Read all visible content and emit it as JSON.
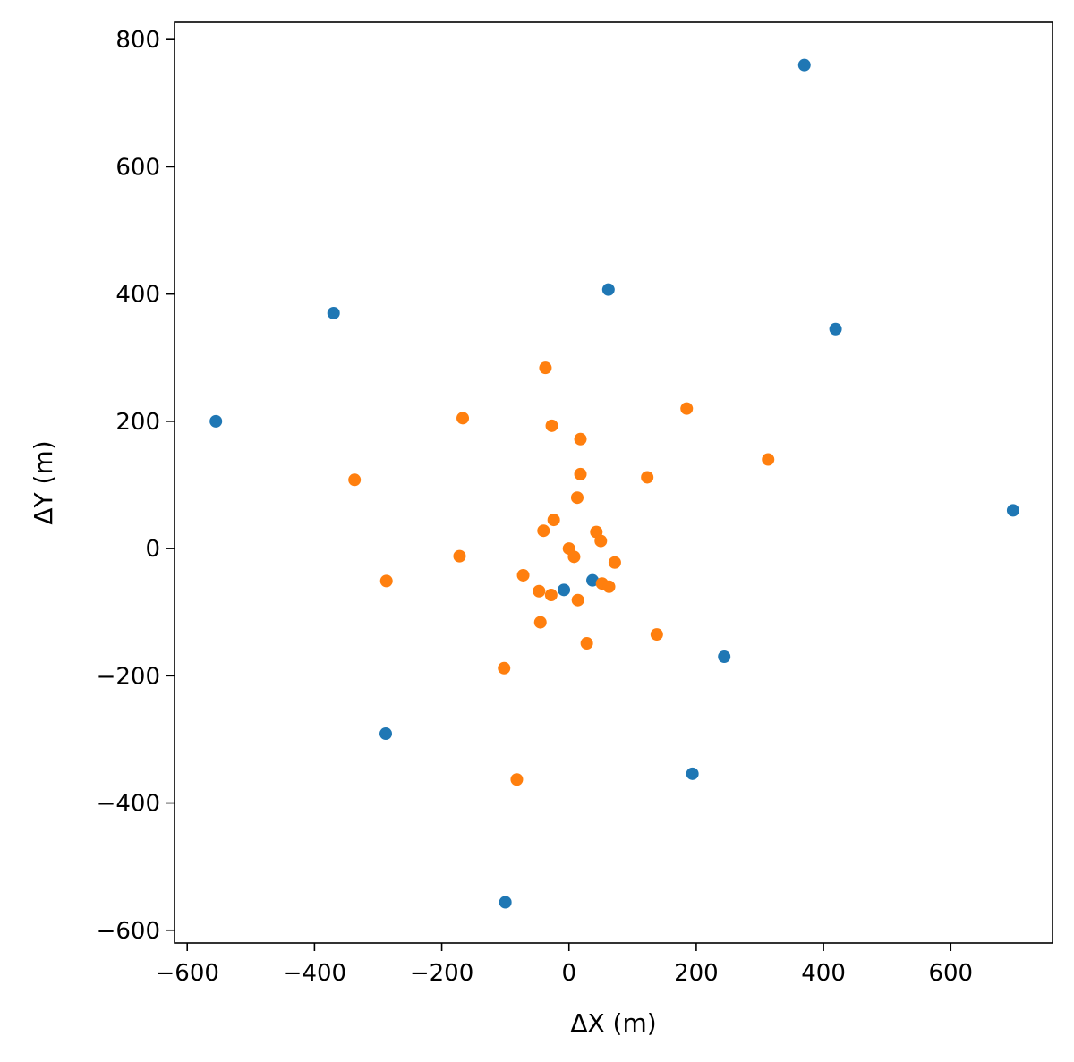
{
  "chart_data": {
    "type": "scatter",
    "title": "",
    "xlabel": "ΔX (m)",
    "ylabel": "ΔY (m)",
    "xlim": [
      -620,
      760
    ],
    "ylim": [
      -620,
      827
    ],
    "x_ticks": [
      -600,
      -400,
      -200,
      0,
      200,
      400,
      600
    ],
    "y_ticks": [
      -600,
      -400,
      -200,
      0,
      200,
      400,
      600,
      800
    ],
    "x_tick_labels": [
      "−600",
      "−400",
      "−200",
      "0",
      "200",
      "400",
      "600"
    ],
    "y_tick_labels": [
      "−600",
      "−400",
      "−200",
      "0",
      "200",
      "400",
      "600",
      "800"
    ],
    "grid": false,
    "legend": "none",
    "series": [
      {
        "color": "#1f77b4",
        "points": [
          {
            "x": 370,
            "y": 760
          },
          {
            "x": 62,
            "y": 407
          },
          {
            "x": -370,
            "y": 370
          },
          {
            "x": 419,
            "y": 345
          },
          {
            "x": -555,
            "y": 200
          },
          {
            "x": 698,
            "y": 60
          },
          {
            "x": 37,
            "y": -50
          },
          {
            "x": -8,
            "y": -65
          },
          {
            "x": 244,
            "y": -170
          },
          {
            "x": -288,
            "y": -291
          },
          {
            "x": 194,
            "y": -354
          },
          {
            "x": -100,
            "y": -556
          }
        ]
      },
      {
        "color": "#ff7f0e",
        "points": [
          {
            "x": -37,
            "y": 284
          },
          {
            "x": 185,
            "y": 220
          },
          {
            "x": -167,
            "y": 205
          },
          {
            "x": -27,
            "y": 193
          },
          {
            "x": 18,
            "y": 172
          },
          {
            "x": 313,
            "y": 140
          },
          {
            "x": 18,
            "y": 117
          },
          {
            "x": 123,
            "y": 112
          },
          {
            "x": -337,
            "y": 108
          },
          {
            "x": 13,
            "y": 80
          },
          {
            "x": -24,
            "y": 45
          },
          {
            "x": -40,
            "y": 28
          },
          {
            "x": 43,
            "y": 26
          },
          {
            "x": 50,
            "y": 12
          },
          {
            "x": 0,
            "y": 0
          },
          {
            "x": 8,
            "y": -13
          },
          {
            "x": -172,
            "y": -12
          },
          {
            "x": 72,
            "y": -22
          },
          {
            "x": -72,
            "y": -42
          },
          {
            "x": -287,
            "y": -51
          },
          {
            "x": 52,
            "y": -55
          },
          {
            "x": 63,
            "y": -60
          },
          {
            "x": -47,
            "y": -67
          },
          {
            "x": -28,
            "y": -73
          },
          {
            "x": 14,
            "y": -81
          },
          {
            "x": -45,
            "y": -116
          },
          {
            "x": 138,
            "y": -135
          },
          {
            "x": 28,
            "y": -149
          },
          {
            "x": -102,
            "y": -188
          },
          {
            "x": -82,
            "y": -363
          }
        ]
      }
    ]
  }
}
